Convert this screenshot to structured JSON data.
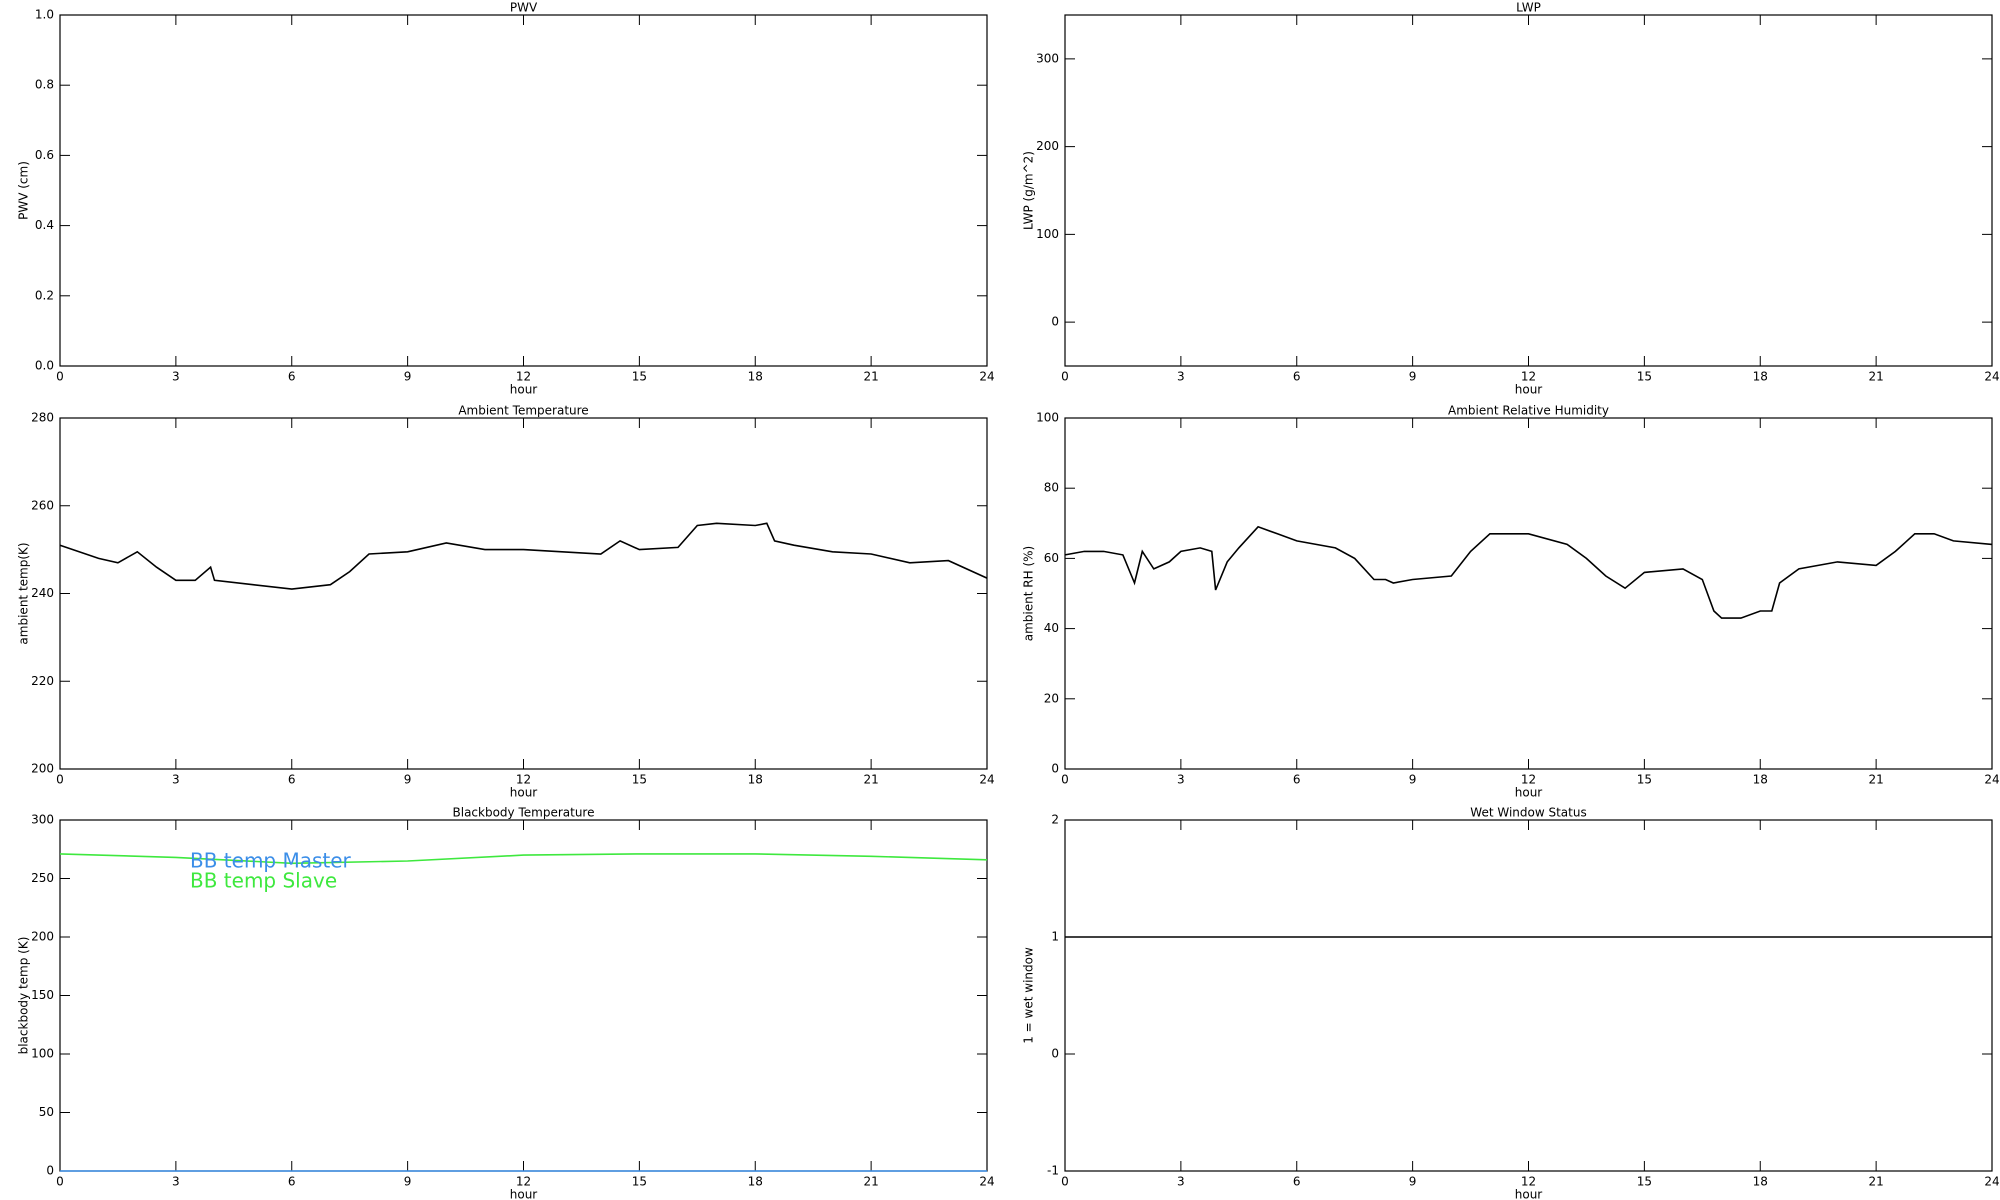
{
  "chart_data": [
    {
      "type": "line",
      "title": "PWV",
      "xlabel": "hour",
      "ylabel": "PWV (cm)",
      "xlim": [
        0,
        24
      ],
      "xticks": [
        0,
        3,
        6,
        9,
        12,
        15,
        18,
        21,
        24
      ],
      "ylim": [
        0,
        1
      ],
      "yticks": [
        {
          "value": 0,
          "label": "0.0"
        },
        0.2,
        0.4,
        0.6,
        0.8,
        {
          "value": 1,
          "label": "1.0"
        }
      ]
    },
    {
      "type": "line",
      "title": "LWP",
      "xlabel": "hour",
      "ylabel": "LWP (g/m^2)",
      "xlim": [
        0,
        24
      ],
      "xticks": [
        0,
        3,
        6,
        9,
        12,
        15,
        18,
        21,
        24
      ],
      "ylim": [
        -50,
        350
      ],
      "yticks": [
        0,
        100,
        200,
        300
      ]
    },
    {
      "type": "line",
      "title": "Ambient Temperature",
      "xlabel": "hour",
      "ylabel": "ambient temp(K)",
      "xlim": [
        0,
        24
      ],
      "xticks": [
        0,
        3,
        6,
        9,
        12,
        15,
        18,
        21,
        24
      ],
      "ylim": [
        200,
        280
      ],
      "yticks": [
        200,
        220,
        240,
        260,
        280
      ],
      "x": [
        0,
        1,
        1.5,
        2,
        2.5,
        3,
        3.5,
        3.9,
        4,
        5,
        6,
        7,
        7.5,
        8,
        9,
        10,
        11,
        12,
        13,
        14,
        14.5,
        15,
        16,
        16.5,
        17,
        18,
        18.3,
        18.5,
        19,
        20,
        21,
        22,
        23,
        24
      ],
      "series": [
        {
          "name": "ambient temp",
          "color": "#000000",
          "values": [
            251,
            248,
            247,
            249.5,
            246,
            243,
            243,
            246,
            243,
            242,
            241,
            242,
            245,
            249,
            249.5,
            251.5,
            250,
            250,
            249.5,
            249,
            252,
            250,
            250.5,
            255.5,
            256,
            255.5,
            256,
            252,
            251,
            249.5,
            249,
            247,
            247.5,
            243.5
          ]
        }
      ]
    },
    {
      "type": "line",
      "title": "Ambient Relative Humidity",
      "xlabel": "hour",
      "ylabel": "ambient RH (%)",
      "xlim": [
        0,
        24
      ],
      "xticks": [
        0,
        3,
        6,
        9,
        12,
        15,
        18,
        21,
        24
      ],
      "ylim": [
        0,
        100
      ],
      "yticks": [
        0,
        20,
        40,
        60,
        80,
        100
      ],
      "x": [
        0,
        0.5,
        1,
        1.5,
        1.8,
        2,
        2.3,
        2.7,
        3,
        3.5,
        3.8,
        3.9,
        4.2,
        4.5,
        5,
        5.5,
        6,
        7,
        7.5,
        8,
        8.3,
        8.5,
        9,
        10,
        10.5,
        11,
        12,
        13,
        13.5,
        14,
        14.5,
        15,
        16,
        16.5,
        16.8,
        17,
        17.5,
        18,
        18.3,
        18.5,
        19,
        20,
        21,
        21.5,
        22,
        22.5,
        23,
        24
      ],
      "series": [
        {
          "name": "ambient RH",
          "color": "#000000",
          "values": [
            61,
            62,
            62,
            61,
            53,
            62,
            57,
            59,
            62,
            63,
            62,
            51,
            59,
            63,
            69,
            67,
            65,
            63,
            60,
            54,
            54,
            53,
            54,
            55,
            62,
            67,
            67,
            64,
            60,
            55,
            51.5,
            56,
            57,
            54,
            45,
            43,
            43,
            45,
            45,
            53,
            57,
            59,
            58,
            62,
            67,
            67,
            65,
            64
          ]
        }
      ]
    },
    {
      "type": "line",
      "title": "Blackbody Temperature",
      "xlabel": "hour",
      "ylabel": "blackbody temp (K)",
      "xlim": [
        0,
        24
      ],
      "xticks": [
        0,
        3,
        6,
        9,
        12,
        15,
        18,
        21,
        24
      ],
      "ylim": [
        0,
        300
      ],
      "yticks": [
        0,
        50,
        100,
        150,
        200,
        250,
        300
      ],
      "legend": "upper left",
      "x": [
        0,
        3,
        6,
        9,
        12,
        15,
        18,
        21,
        24
      ],
      "series": [
        {
          "name": "BB temp Master",
          "color": "#3b8ee8",
          "values": [
            0,
            0,
            0,
            0,
            0,
            0,
            0,
            0,
            0
          ]
        },
        {
          "name": "BB temp Slave",
          "color": "#3ee83e",
          "values": [
            271,
            268,
            263,
            265,
            270,
            271,
            271,
            269,
            266
          ]
        }
      ]
    },
    {
      "type": "line",
      "title": "Wet Window Status",
      "xlabel": "hour",
      "ylabel": "1 = wet window",
      "xlim": [
        0,
        24
      ],
      "xticks": [
        0,
        3,
        6,
        9,
        12,
        15,
        18,
        21,
        24
      ],
      "ylim": [
        -1,
        2
      ],
      "yticks": [
        -1,
        0,
        1,
        2
      ],
      "x": [
        0,
        24
      ],
      "series": [
        {
          "name": "wet window",
          "color": "#000000",
          "values": [
            1,
            1
          ]
        }
      ]
    }
  ]
}
